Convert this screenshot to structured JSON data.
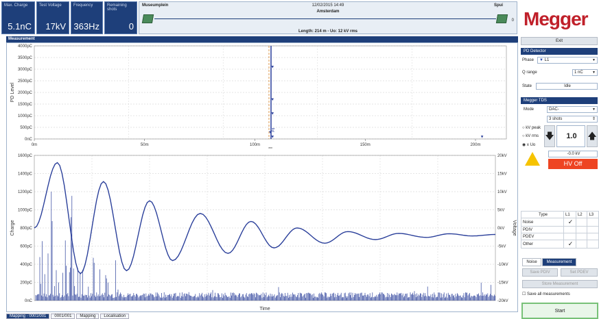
{
  "stats": [
    {
      "label": "Max. Charge",
      "value": "5.1nC"
    },
    {
      "label": "Test Voltage",
      "value": "17kV"
    },
    {
      "label": "Frequency",
      "value": "363Hz"
    },
    {
      "label": "Remaining shots",
      "value": "0"
    }
  ],
  "cable": {
    "from": "Museumplein",
    "to": "Spui",
    "datetime": "12/02/2015 14:49",
    "city": "Amsterdam",
    "length": "Length: 214 m - Uo: 12 kV rms",
    "count": "0"
  },
  "measurement": {
    "title": "Measurement"
  },
  "tabs": [
    "Mapping - 0001/001",
    "0001/001",
    "Mapping",
    "Localisation"
  ],
  "right": {
    "logo": "Megger",
    "exit": "Exit",
    "pd_detector": "PD Detector",
    "phase_label": "Phase",
    "phase_value": "L1",
    "qrange_label": "Q range",
    "qrange_value": "1 nC",
    "state_label": "State",
    "state_value": "Idle",
    "tds": "Megger TDS",
    "mode_label": "Mode",
    "mode_value": "DAC-",
    "shots": "3 shots",
    "opt_kvpeak": "kV peak",
    "opt_kvrms": "kV rms",
    "opt_xuo": "x Uo",
    "set_value": "1.0",
    "kv_readout": "-0.0 kV",
    "hv_off": "HV Off",
    "table": {
      "headers": [
        "Type",
        "L1",
        "L2",
        "L3"
      ],
      "rows": [
        [
          "Noise",
          "✓",
          "",
          ""
        ],
        [
          "PDIV",
          "",
          "",
          ""
        ],
        [
          "PDEV",
          "",
          "",
          ""
        ],
        [
          "Other",
          "✓",
          "",
          ""
        ]
      ]
    },
    "tab_noise": "Noise",
    "tab_measurement": "Measurement",
    "save_pdiv": "Save PDIV",
    "set_pdev": "Set PDEV",
    "store_measurement": "Store Measurement",
    "save_all": "Save all measurements",
    "start": "Start"
  },
  "chart_data": [
    {
      "type": "scatter",
      "ylabel": "PD Level",
      "y_ticks": [
        "4000pC",
        "3500pC",
        "3000pC",
        "2500pC",
        "2000pC",
        "1500pC",
        "1000pC",
        "500pC",
        "0nC"
      ],
      "x_ticks": [
        "0m",
        "50m",
        "100m",
        "150m",
        "200m"
      ],
      "ylim": [
        0,
        4000
      ],
      "xlim": [
        0,
        214
      ],
      "xlabel_note": "***",
      "cursor_x": 107,
      "points": [
        {
          "x": 108,
          "y": 3100
        },
        {
          "x": 108,
          "y": 1700
        },
        {
          "x": 108,
          "y": 1100
        },
        {
          "x": 107,
          "y": 300
        },
        {
          "x": 108,
          "y": 100
        },
        {
          "x": 203,
          "y": 100
        }
      ],
      "annotation": "Pd"
    },
    {
      "type": "line",
      "xlabel": "Time",
      "ylabel": "Charge",
      "y2label": "Voltage",
      "y_ticks": [
        "1600pC",
        "1400pC",
        "1200pC",
        "1000pC",
        "800pC",
        "600pC",
        "400pC",
        "200pC",
        "0nC"
      ],
      "y2_ticks": [
        "20kV",
        "15kV",
        "10kV",
        "5kV",
        "0kV",
        "-5kV",
        "-10kV",
        "-15kV",
        "-20kV"
      ],
      "ylim": [
        0,
        1600
      ],
      "y2lim": [
        -20,
        20
      ],
      "voltage_peaks_kV": [
        {
          "x": 0.05,
          "y": 18.0
        },
        {
          "x": 0.1,
          "y": -12.6
        },
        {
          "x": 0.15,
          "y": 12.8
        },
        {
          "x": 0.2,
          "y": -11.8
        },
        {
          "x": 0.25,
          "y": 7.5
        },
        {
          "x": 0.3,
          "y": -9.0
        },
        {
          "x": 0.36,
          "y": 4.0
        },
        {
          "x": 0.42,
          "y": -7.0
        },
        {
          "x": 0.47,
          "y": 1.8
        },
        {
          "x": 0.52,
          "y": -5.5
        },
        {
          "x": 0.57,
          "y": 0.0
        },
        {
          "x": 0.63,
          "y": -4.2
        },
        {
          "x": 0.68,
          "y": -1.0
        },
        {
          "x": 0.74,
          "y": -3.2
        },
        {
          "x": 0.79,
          "y": -1.5
        },
        {
          "x": 0.85,
          "y": -2.6
        },
        {
          "x": 0.9,
          "y": -1.6
        },
        {
          "x": 0.95,
          "y": -2.2
        },
        {
          "x": 1.0,
          "y": -1.8
        }
      ]
    }
  ]
}
